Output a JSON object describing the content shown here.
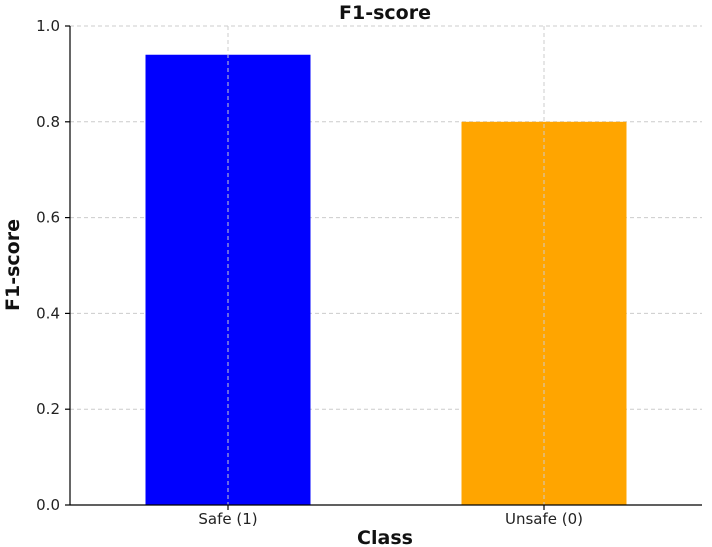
{
  "chart_data": {
    "type": "bar",
    "title": "F1-score",
    "xlabel": "Class",
    "ylabel": "F1-score",
    "categories": [
      "Safe (1)",
      "Unsafe (0)"
    ],
    "values": [
      0.94,
      0.8
    ],
    "colors": [
      "#0000ff",
      "#ffa500"
    ],
    "ylim": [
      0,
      1.0
    ],
    "yticks": [
      0.0,
      0.2,
      0.4,
      0.6,
      0.8,
      1.0
    ],
    "ytick_labels": [
      "0.0",
      "0.2",
      "0.4",
      "0.6",
      "0.8",
      "1.0"
    ],
    "grid": true
  }
}
